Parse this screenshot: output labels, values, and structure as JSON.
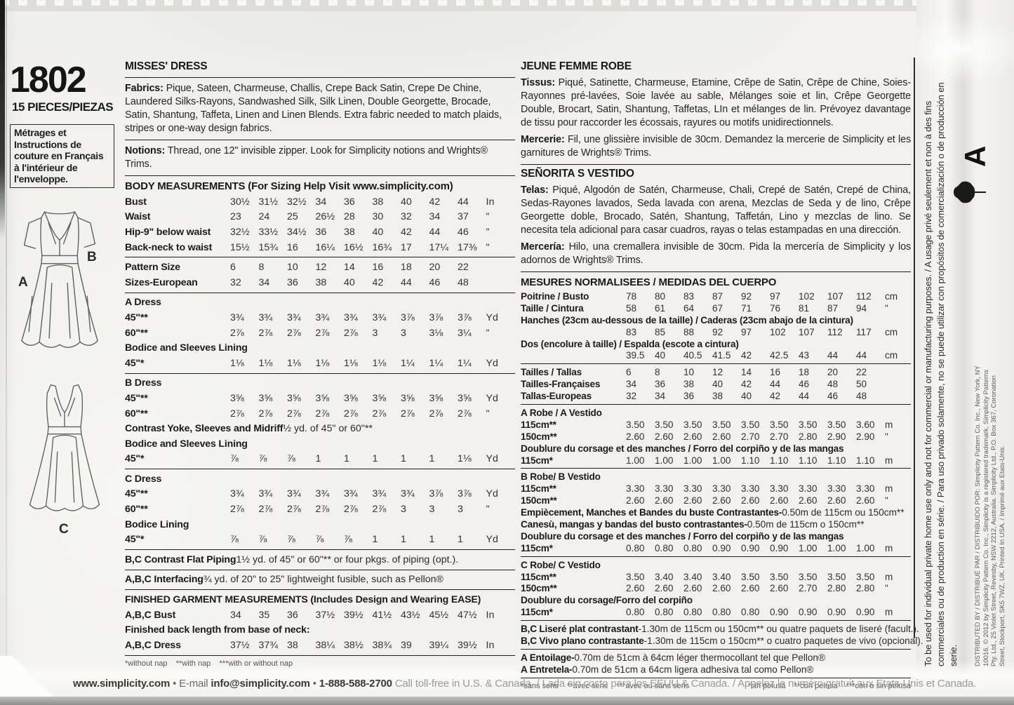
{
  "sidebar": {
    "pattern_number": "1802",
    "pieces": "15 PIECES/PIEZAS",
    "french_box": "Métrages et Instructions de couture en Français à l'intérieur de l'enveloppe.",
    "view_a_label": "A",
    "view_b_label": "B",
    "view_c_label": "C"
  },
  "english": {
    "title": "MISSES' DRESS",
    "fabrics_label": "Fabrics:",
    "fabrics_text": " Pique, Sateen, Charmeuse, Challis, Crepe Back Satin, Crepe De Chine, Laundered Silks-Rayons, Sandwashed Silk, Silk Linen, Double Georgette, Brocade, Satin, Shantung, Taffeta, Linen and Linen Blends. Extra fabric needed to match plaids, stripes or one-way design fabrics.",
    "notions_label": "Notions:",
    "notions_text": " Thread, one 12\" invisible zipper. Look for Simplicity notions and Wrights® Trims.",
    "body_heading": "BODY MEASUREMENTS (For Sizing Help Visit www.simplicity.com)",
    "table": [
      {
        "t": "d",
        "l": "Bust",
        "v": [
          "30½",
          "31½",
          "32½",
          "34",
          "36",
          "38",
          "40",
          "42",
          "44"
        ],
        "u": "In"
      },
      {
        "t": "d",
        "l": "Waist",
        "v": [
          "23",
          "24",
          "25",
          "26½",
          "28",
          "30",
          "32",
          "34",
          "37"
        ],
        "u": "\""
      },
      {
        "t": "d",
        "l": "Hip-9\" below waist",
        "v": [
          "32½",
          "33½",
          "34½",
          "36",
          "38",
          "40",
          "42",
          "44",
          "46"
        ],
        "u": "\""
      },
      {
        "t": "d",
        "l": "Back-neck to waist",
        "v": [
          "15½",
          "15¾",
          "16",
          "16¼",
          "16½",
          "16¾",
          "17",
          "17¼",
          "17⅜"
        ],
        "u": "\""
      },
      {
        "t": "hr"
      },
      {
        "t": "d",
        "l": "Pattern Size",
        "v": [
          "6",
          "8",
          "10",
          "12",
          "14",
          "16",
          "18",
          "20",
          "22"
        ],
        "u": ""
      },
      {
        "t": "d",
        "l": "Sizes-European",
        "v": [
          "32",
          "34",
          "36",
          "38",
          "40",
          "42",
          "44",
          "46",
          "48"
        ],
        "u": ""
      },
      {
        "t": "hr"
      },
      {
        "t": "s",
        "l": "A Dress"
      },
      {
        "t": "d",
        "l": "45\"**",
        "v": [
          "3¾",
          "3¾",
          "3¾",
          "3¾",
          "3¾",
          "3¾",
          "3⅞",
          "3⅞",
          "3⅞"
        ],
        "u": "Yd"
      },
      {
        "t": "d",
        "l": "60\"**",
        "v": [
          "2⅞",
          "2⅞",
          "2⅞",
          "2⅞",
          "2⅞",
          "3",
          "3",
          "3⅛",
          "3¼"
        ],
        "u": "\""
      },
      {
        "t": "s",
        "l": "Bodice and Sleeves Lining"
      },
      {
        "t": "d",
        "l": "45\"*",
        "v": [
          "1⅛",
          "1⅛",
          "1⅛",
          "1⅛",
          "1⅛",
          "1⅛",
          "1¼",
          "1¼",
          "1¼"
        ],
        "u": "Yd"
      },
      {
        "t": "hr"
      },
      {
        "t": "s",
        "l": "B Dress"
      },
      {
        "t": "d",
        "l": "45\"**",
        "v": [
          "3⅝",
          "3⅝",
          "3⅝",
          "3⅝",
          "3⅝",
          "3⅝",
          "3⅝",
          "3⅝",
          "3⅝"
        ],
        "u": "Yd"
      },
      {
        "t": "d",
        "l": "60\"**",
        "v": [
          "2⅞",
          "2⅞",
          "2⅞",
          "2⅞",
          "2⅞",
          "2⅞",
          "2⅞",
          "2⅞",
          "2⅞"
        ],
        "u": "\""
      },
      {
        "t": "n",
        "l": "Contrast Yoke, Sleeves and Midriff",
        "r": " ½ yd. of 45\" or 60\"**"
      },
      {
        "t": "s",
        "l": "Bodice and Sleeves Lining"
      },
      {
        "t": "d",
        "l": "45\"*",
        "v": [
          "⅞",
          "⅞",
          "⅞",
          "1",
          "1",
          "1",
          "1",
          "1",
          "1⅛"
        ],
        "u": "Yd"
      },
      {
        "t": "hr"
      },
      {
        "t": "s",
        "l": "C Dress"
      },
      {
        "t": "d",
        "l": "45\"**",
        "v": [
          "3¾",
          "3¾",
          "3¾",
          "3¾",
          "3¾",
          "3¾",
          "3¾",
          "3⅞",
          "3⅞"
        ],
        "u": "Yd"
      },
      {
        "t": "d",
        "l": "60\"**",
        "v": [
          "2⅞",
          "2⅞",
          "2⅞",
          "2⅞",
          "2⅞",
          "2⅞",
          "3",
          "3",
          "3"
        ],
        "u": "\""
      },
      {
        "t": "s",
        "l": "Bodice Lining"
      },
      {
        "t": "d",
        "l": "45\"*",
        "v": [
          "⅞",
          "⅞",
          "⅞",
          "⅞",
          "⅞",
          "1",
          "1",
          "1",
          "1"
        ],
        "u": "Yd"
      },
      {
        "t": "hr"
      },
      {
        "t": "n",
        "l": "B,C Contrast Flat Piping",
        "r": " 1½ yd. of 45\" or 60\"** or four pkgs. of piping (opt.)."
      },
      {
        "t": "hr"
      },
      {
        "t": "n",
        "l": "A,B,C Interfacing",
        "r": " ¾ yd. of 20\" to 25\" lightweight fusible, such as Pellon®"
      },
      {
        "t": "hr"
      },
      {
        "t": "s",
        "l": "FINISHED GARMENT MEASUREMENTS (Includes Design and Wearing EASE)"
      },
      {
        "t": "d",
        "l": "A,B,C Bust",
        "v": [
          "34",
          "35",
          "36",
          "37½",
          "39½",
          "41½",
          "43½",
          "45½",
          "47½"
        ],
        "u": "In"
      },
      {
        "t": "s",
        "l": "Finished back length from base of neck:"
      },
      {
        "t": "d",
        "l": "A,B,C Dress",
        "v": [
          "37½",
          "37¾",
          "38",
          "38¼",
          "38½",
          "38¾",
          "39",
          "39¼",
          "39½"
        ],
        "u": "In"
      }
    ],
    "footnote": "*without nap    **with nap    ***with or without nap"
  },
  "french_spanish": {
    "title_fr": "JEUNE FEMME ROBE",
    "tissus_label": "Tissus:",
    "tissus_text": " Piqué, Satinette, Charmeuse, Etamine, Crêpe de Satin, Crêpe de Chine, Soies-Rayonnes pré-lavées, Soie lavée au sable, Mélanges soie et lin, Crêpe Georgette Double, Brocart, Satin, Shantung, Taffetas, LIn et mélanges de lin. Prévoyez davantage de tissu pour raccorder les écossais, rayures ou motifs unidirectionnels.",
    "mercerie_label": "Mercerie:",
    "mercerie_text": " Fil, une glissière invisible de 30cm. Demandez la mercerie de Simplicity et les garnitures de Wrights® Trims.",
    "title_es": "SEÑORITA S VESTIDO",
    "telas_label": "Telas:",
    "telas_text": " Piqué, Algodón de Satén, Charmeuse, Chali, Crepé de Satén, Crepé de China, Sedas-Rayones lavados, Seda lavada con arena, Mezclas de Seda y de lino, Crêpe Georgette doble, Brocado, Satén, Shantung, Taffetán, Lino y mezclas de lino. Se necesita tela adicional para casar cuadros, rayas o telas estampadas en una dirección.",
    "merceria_label": "Mercería:",
    "merceria_text": " Hilo, una cremallera invisible de 30cm. Pida la mercería de Simplicity y los adornos de Wrights® Trims.",
    "measures_heading": "MESURES NORMALISEES / MEDIDAS DEL CUERPO",
    "table": [
      {
        "t": "d",
        "l": "Poitrine / Busto",
        "v": [
          "78",
          "80",
          "83",
          "87",
          "92",
          "97",
          "102",
          "107",
          "112"
        ],
        "u": "cm"
      },
      {
        "t": "d",
        "l": "Taille / Cintura",
        "v": [
          "58",
          "61",
          "64",
          "67",
          "71",
          "76",
          "81",
          "87",
          "94"
        ],
        "u": "\""
      },
      {
        "t": "s",
        "l": "Hanches (23cm au-dessous de la taille) / Caderas (23cm abajo de la cintura)"
      },
      {
        "t": "d",
        "l": "",
        "v": [
          "83",
          "85",
          "88",
          "92",
          "97",
          "102",
          "107",
          "112",
          "117"
        ],
        "u": "cm"
      },
      {
        "t": "s",
        "l": "Dos (encolure à taille) / Espalda (escote a cintura)"
      },
      {
        "t": "d",
        "l": "",
        "v": [
          "39.5",
          "40",
          "40.5",
          "41.5",
          "42",
          "42.5",
          "43",
          "44",
          "44"
        ],
        "u": "cm"
      },
      {
        "t": "hr"
      },
      {
        "t": "d",
        "l": "Tailles / Tallas",
        "v": [
          "6",
          "8",
          "10",
          "12",
          "14",
          "16",
          "18",
          "20",
          "22"
        ],
        "u": ""
      },
      {
        "t": "d",
        "l": "Tailles-Françaises",
        "v": [
          "34",
          "36",
          "38",
          "40",
          "42",
          "44",
          "46",
          "48",
          "50"
        ],
        "u": ""
      },
      {
        "t": "d",
        "l": "Tallas-Europeas",
        "v": [
          "32",
          "34",
          "36",
          "38",
          "40",
          "42",
          "44",
          "46",
          "48"
        ],
        "u": ""
      },
      {
        "t": "hr"
      },
      {
        "t": "s",
        "l": "A Robe / A Vestido"
      },
      {
        "t": "d",
        "l": "115cm**",
        "v": [
          "3.50",
          "3.50",
          "3.50",
          "3.50",
          "3.50",
          "3.50",
          "3.50",
          "3.50",
          "3.60"
        ],
        "u": "m"
      },
      {
        "t": "d",
        "l": "150cm**",
        "v": [
          "2.60",
          "2.60",
          "2.60",
          "2.60",
          "2.70",
          "2.70",
          "2.80",
          "2.90",
          "2.90"
        ],
        "u": "\""
      },
      {
        "t": "s",
        "l": "Doublure du corsage et des manches / Forro del corpiño y de las mangas"
      },
      {
        "t": "d",
        "l": "115cm*",
        "v": [
          "1.00",
          "1.00",
          "1.00",
          "1.00",
          "1.10",
          "1.10",
          "1.10",
          "1.10",
          "1.10"
        ],
        "u": "m"
      },
      {
        "t": "hr"
      },
      {
        "t": "s",
        "l": "B Robe/ B Vestido"
      },
      {
        "t": "d",
        "l": "115cm**",
        "v": [
          "3.30",
          "3.30",
          "3.30",
          "3.30",
          "3.30",
          "3.30",
          "3.30",
          "3.30",
          "3.30"
        ],
        "u": "m"
      },
      {
        "t": "d",
        "l": "150cm**",
        "v": [
          "2.60",
          "2.60",
          "2.60",
          "2.60",
          "2.60",
          "2.60",
          "2.60",
          "2.60",
          "2.60"
        ],
        "u": "\""
      },
      {
        "t": "n",
        "l": "Empiècement, Manches et Bandes du buste Contrastantes-",
        "r": " 0.50m de 115cm ou 150cm**"
      },
      {
        "t": "n",
        "l": "Canesù, mangas y bandas del busto contrastantes-",
        "r": " 0.50m de 115cm o 150cm**"
      },
      {
        "t": "s",
        "l": "Doublure du corsage et des manches / Forro del corpiño y de las mangas"
      },
      {
        "t": "d",
        "l": "115cm*",
        "v": [
          "0.80",
          "0.80",
          "0.80",
          "0.90",
          "0.90",
          "0.90",
          "1.00",
          "1.00",
          "1.00"
        ],
        "u": "m"
      },
      {
        "t": "hr"
      },
      {
        "t": "s",
        "l": "C Robe/ C Vestido"
      },
      {
        "t": "d",
        "l": "115cm**",
        "v": [
          "3.50",
          "3.40",
          "3.40",
          "3.40",
          "3.50",
          "3.50",
          "3.50",
          "3.50",
          "3.50"
        ],
        "u": "m"
      },
      {
        "t": "d",
        "l": "150cm**",
        "v": [
          "2.60",
          "2.60",
          "2.60",
          "2.60",
          "2.60",
          "2.60",
          "2.70",
          "2.80",
          "2.80"
        ],
        "u": "\""
      },
      {
        "t": "s",
        "l": "Doublure du corsage/Forro del corpiño"
      },
      {
        "t": "d",
        "l": "115cm*",
        "v": [
          "0.80",
          "0.80",
          "0.80",
          "0.80",
          "0.80",
          "0.90",
          "0.90",
          "0.90",
          "0.90"
        ],
        "u": "m"
      },
      {
        "t": "hr"
      },
      {
        "t": "n",
        "l": "B,C Liseré plat contrastant",
        "r": " -1.30m de 115cm ou 150cm** ou quatre paquets de liseré (facult.)."
      },
      {
        "t": "n",
        "l": "B,C Vivo plano contrastante",
        "r": " -1.30m de 115cm o 150cm** o cuatro paquetes de vivo (opcional)."
      },
      {
        "t": "hr"
      },
      {
        "t": "n",
        "l": "A Entoilage-",
        "r": " 0.70m de 51cm à 64cm léger thermocollant tel que Pellon®"
      },
      {
        "t": "n",
        "l": "A Entretela-",
        "r": " 0.70m de 51cm a 64cm ligera adhesiva tal como Pellon®"
      }
    ],
    "footnote_left": "*sans sens    **avec sens    ***avec ou sans sens",
    "footnote_right": "*sin pelusa    **con pelusa    ***con o sin pelusa"
  },
  "footer": {
    "website": "www.simplicity.com",
    "bullet1": " • ",
    "email_label": "E-mail ",
    "email": "info@simplicity.com",
    "bullet2": " • ",
    "phone": "1-888-588-2700",
    "tagline": " Call toll-free in U.S. & Canada. / Lada sin costo para los EEUU & Canada. / Appelez le numéro gratuit aux Etats-Unis et Canada."
  },
  "edge": {
    "usage_line1": "To be used for individual private home use only and not for commercial or manufacturing purposes. / A usage privé seulement et non à des fins",
    "usage_line2": "commerciales ou de production en série. / Para uso privado solamente, no se puede utilizar con propósitos de comercialización o de producción en serie.",
    "distributor": "DISTRIBUTED BY / DISTRIBUÉ PAR / DISTRIBUIDO POR: Simplicity Pattern Co. Inc., New York, NY 10016. © 2012 by Simplicity Pattern Co. Inc., Simplicity is a registered trademark, Simplicity Patterns Pty. Ltd., 25 Violet Street, Revesby, NSW 2212, Australia. Simplicity Ltd., P.O. Box 367, Coronation Street, Stockport, SK5 7WZ, UK. Printed In USA. / Imprimé aux Etats-Unis.",
    "view_letter": "A"
  }
}
